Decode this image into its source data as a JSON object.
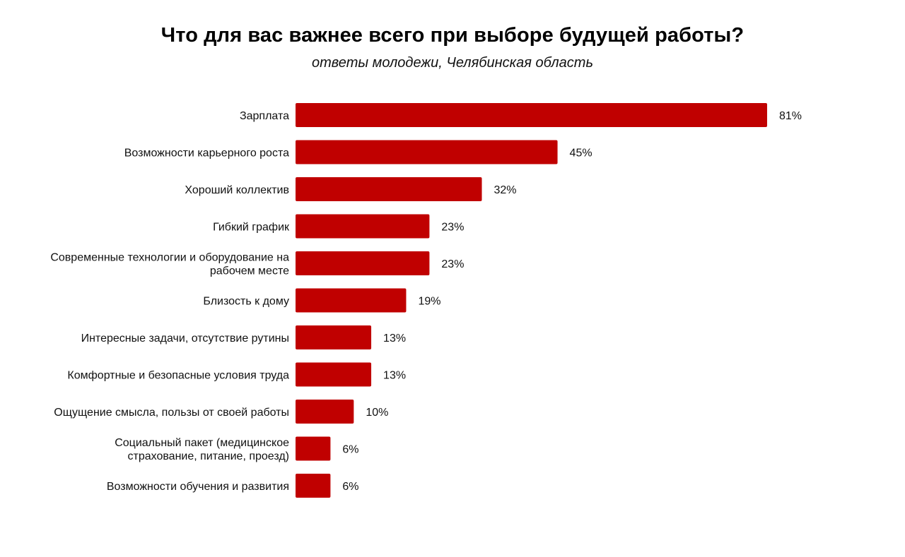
{
  "colors": {
    "bar": "#c00000",
    "text": "#111111",
    "background": "#ffffff"
  },
  "chart_data": {
    "type": "bar",
    "orientation": "horizontal",
    "title": "Что для вас важнее всего при выборе будущей работы?",
    "subtitle": "ответы молодежи, Челябинская область",
    "categories": [
      [
        "Зарплата"
      ],
      [
        "Возможности карьерного роста"
      ],
      [
        "Хороший коллектив"
      ],
      [
        "Гибкий график"
      ],
      [
        "Современные технологии и оборудование на",
        "рабочем месте"
      ],
      [
        "Близость к дому"
      ],
      [
        "Интересные задачи, отсутствие рутины"
      ],
      [
        "Комфортные и безопасные условия труда"
      ],
      [
        "Ощущение смысла, пользы от своей работы"
      ],
      [
        "Социальный пакет (медицинское",
        "страхование, питание, проезд)"
      ],
      [
        "Возможности обучения и развития"
      ]
    ],
    "values": [
      81,
      45,
      32,
      23,
      23,
      19,
      13,
      13,
      10,
      6,
      6
    ],
    "value_labels": [
      "81%",
      "45%",
      "32%",
      "23%",
      "23%",
      "19%",
      "13%",
      "13%",
      "10%",
      "6%",
      "6%"
    ],
    "unit": "%",
    "grid": false,
    "legend": "none"
  }
}
